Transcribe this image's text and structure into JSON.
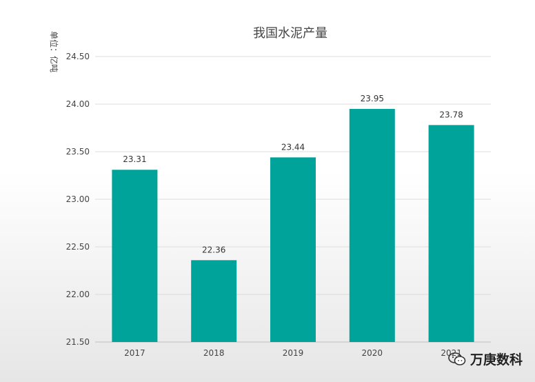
{
  "chart_data": {
    "type": "bar",
    "title": "我国水泥产量",
    "ylabel": "单位：亿吨",
    "xlabel": "",
    "categories": [
      "2017",
      "2018",
      "2019",
      "2020",
      "2021"
    ],
    "values": [
      23.31,
      22.36,
      23.44,
      23.95,
      23.78
    ],
    "value_labels": [
      "23.31",
      "22.36",
      "23.44",
      "23.95",
      "23.78"
    ],
    "ylim": [
      21.5,
      24.5
    ],
    "yticks": [
      21.5,
      22.0,
      22.5,
      23.0,
      23.5,
      24.0,
      24.5
    ],
    "ytick_labels": [
      "21.50",
      "22.00",
      "22.50",
      "23.00",
      "23.50",
      "24.00",
      "24.50"
    ],
    "grid": true,
    "bar_color": "#00A39A"
  },
  "watermark": {
    "text": "万庚数科",
    "icon": "wechat-icon"
  }
}
